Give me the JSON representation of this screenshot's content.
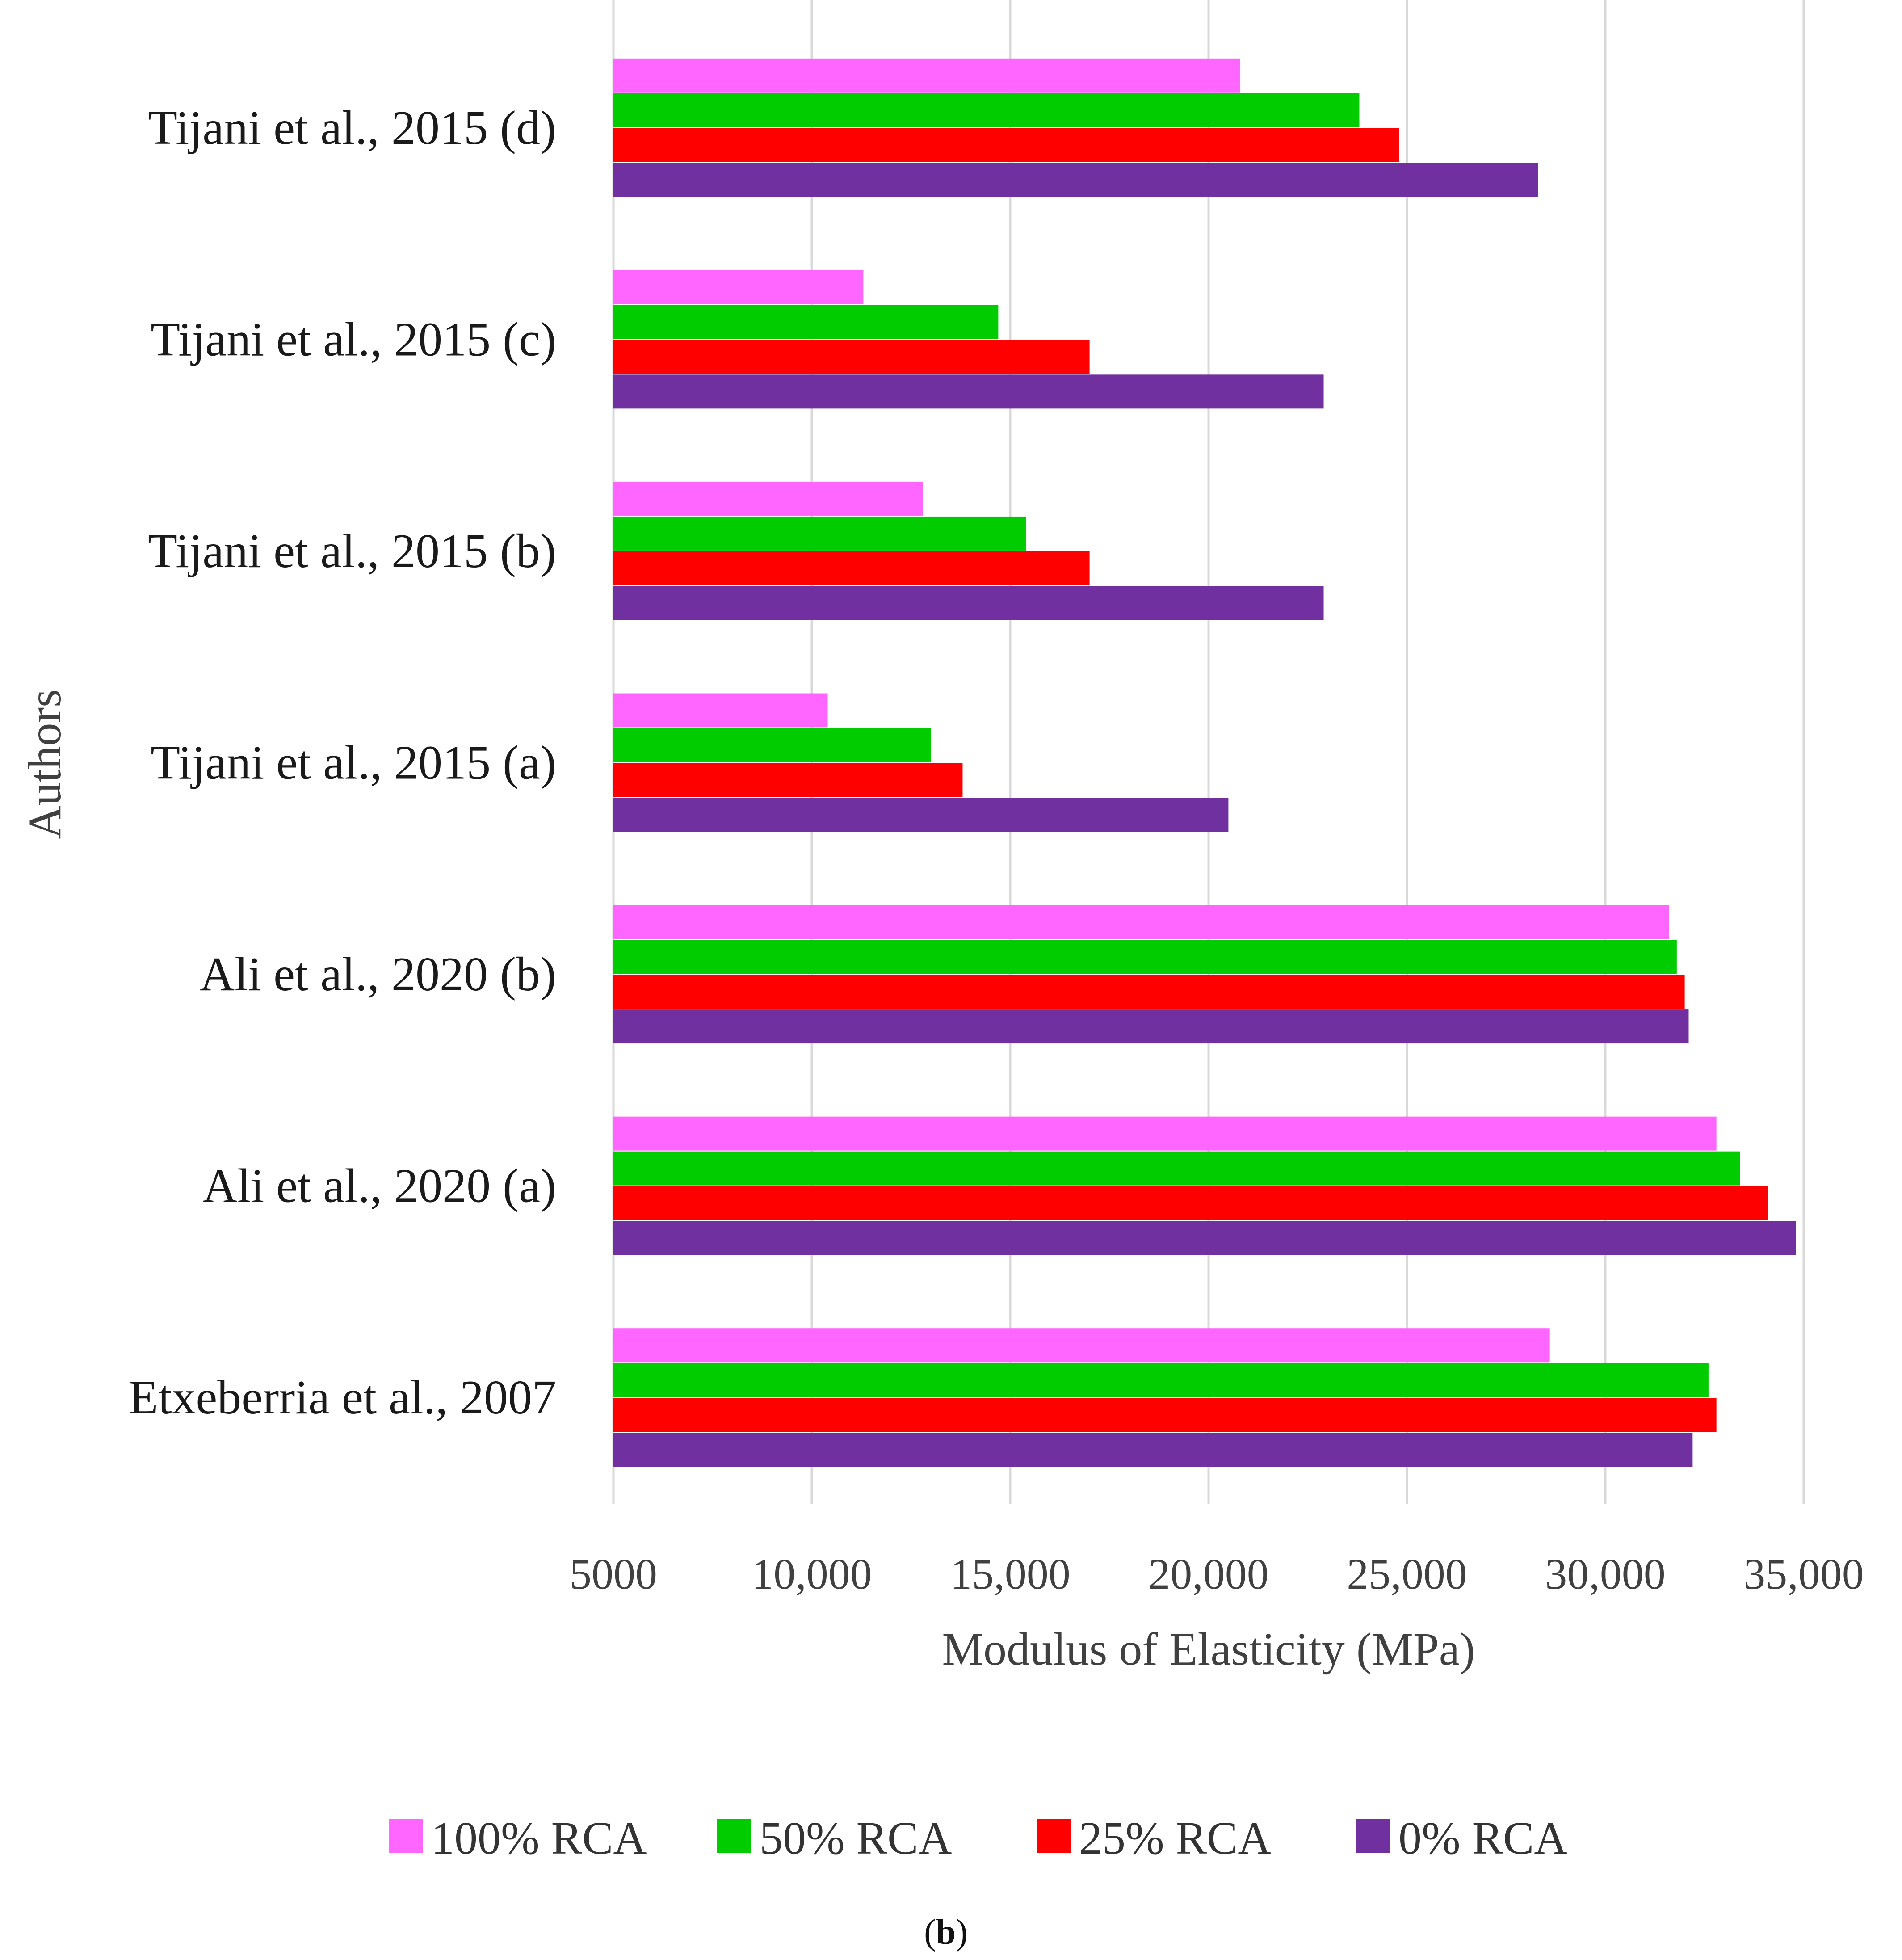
{
  "chart_data": {
    "type": "bar",
    "orientation": "horizontal",
    "categories": [
      "Tijani et al., 2015 (d)",
      "Tijani et al., 2015 (c)",
      "Tijani et al., 2015 (b)",
      "Tijani et al., 2015 (a)",
      "Ali et al., 2020 (b)",
      "Ali et al., 2020 (a)",
      "Etxeberria et al., 2007"
    ],
    "series": [
      {
        "name": "100% RCA",
        "color": "#ff66ff",
        "values": [
          20800,
          11300,
          12800,
          10400,
          31600,
          32800,
          28600
        ]
      },
      {
        "name": "50% RCA",
        "color": "#00cc00",
        "values": [
          23800,
          14700,
          15400,
          13000,
          31800,
          33400,
          32600
        ]
      },
      {
        "name": "25% RCA",
        "color": "#ff0000",
        "values": [
          24800,
          17000,
          17000,
          13800,
          32000,
          34100,
          32800
        ]
      },
      {
        "name": "0% RCA",
        "color": "#7030a0",
        "values": [
          28300,
          22900,
          22900,
          20500,
          32100,
          34800,
          32200
        ]
      }
    ],
    "xlim": [
      5000,
      35000
    ],
    "xticks": [
      5000,
      10000,
      15000,
      20000,
      25000,
      30000,
      35000
    ],
    "xtick_labels": [
      "5000",
      "10,000",
      "15,000",
      "20,000",
      "25,000",
      "30,000",
      "35,000"
    ],
    "xlabel": "Modulus of Elasticity (MPa)",
    "ylabel": "Authors",
    "grid": true,
    "legend_position": "bottom",
    "panel_label_open": "(",
    "panel_label_letter": "b",
    "panel_label_close": ")"
  }
}
